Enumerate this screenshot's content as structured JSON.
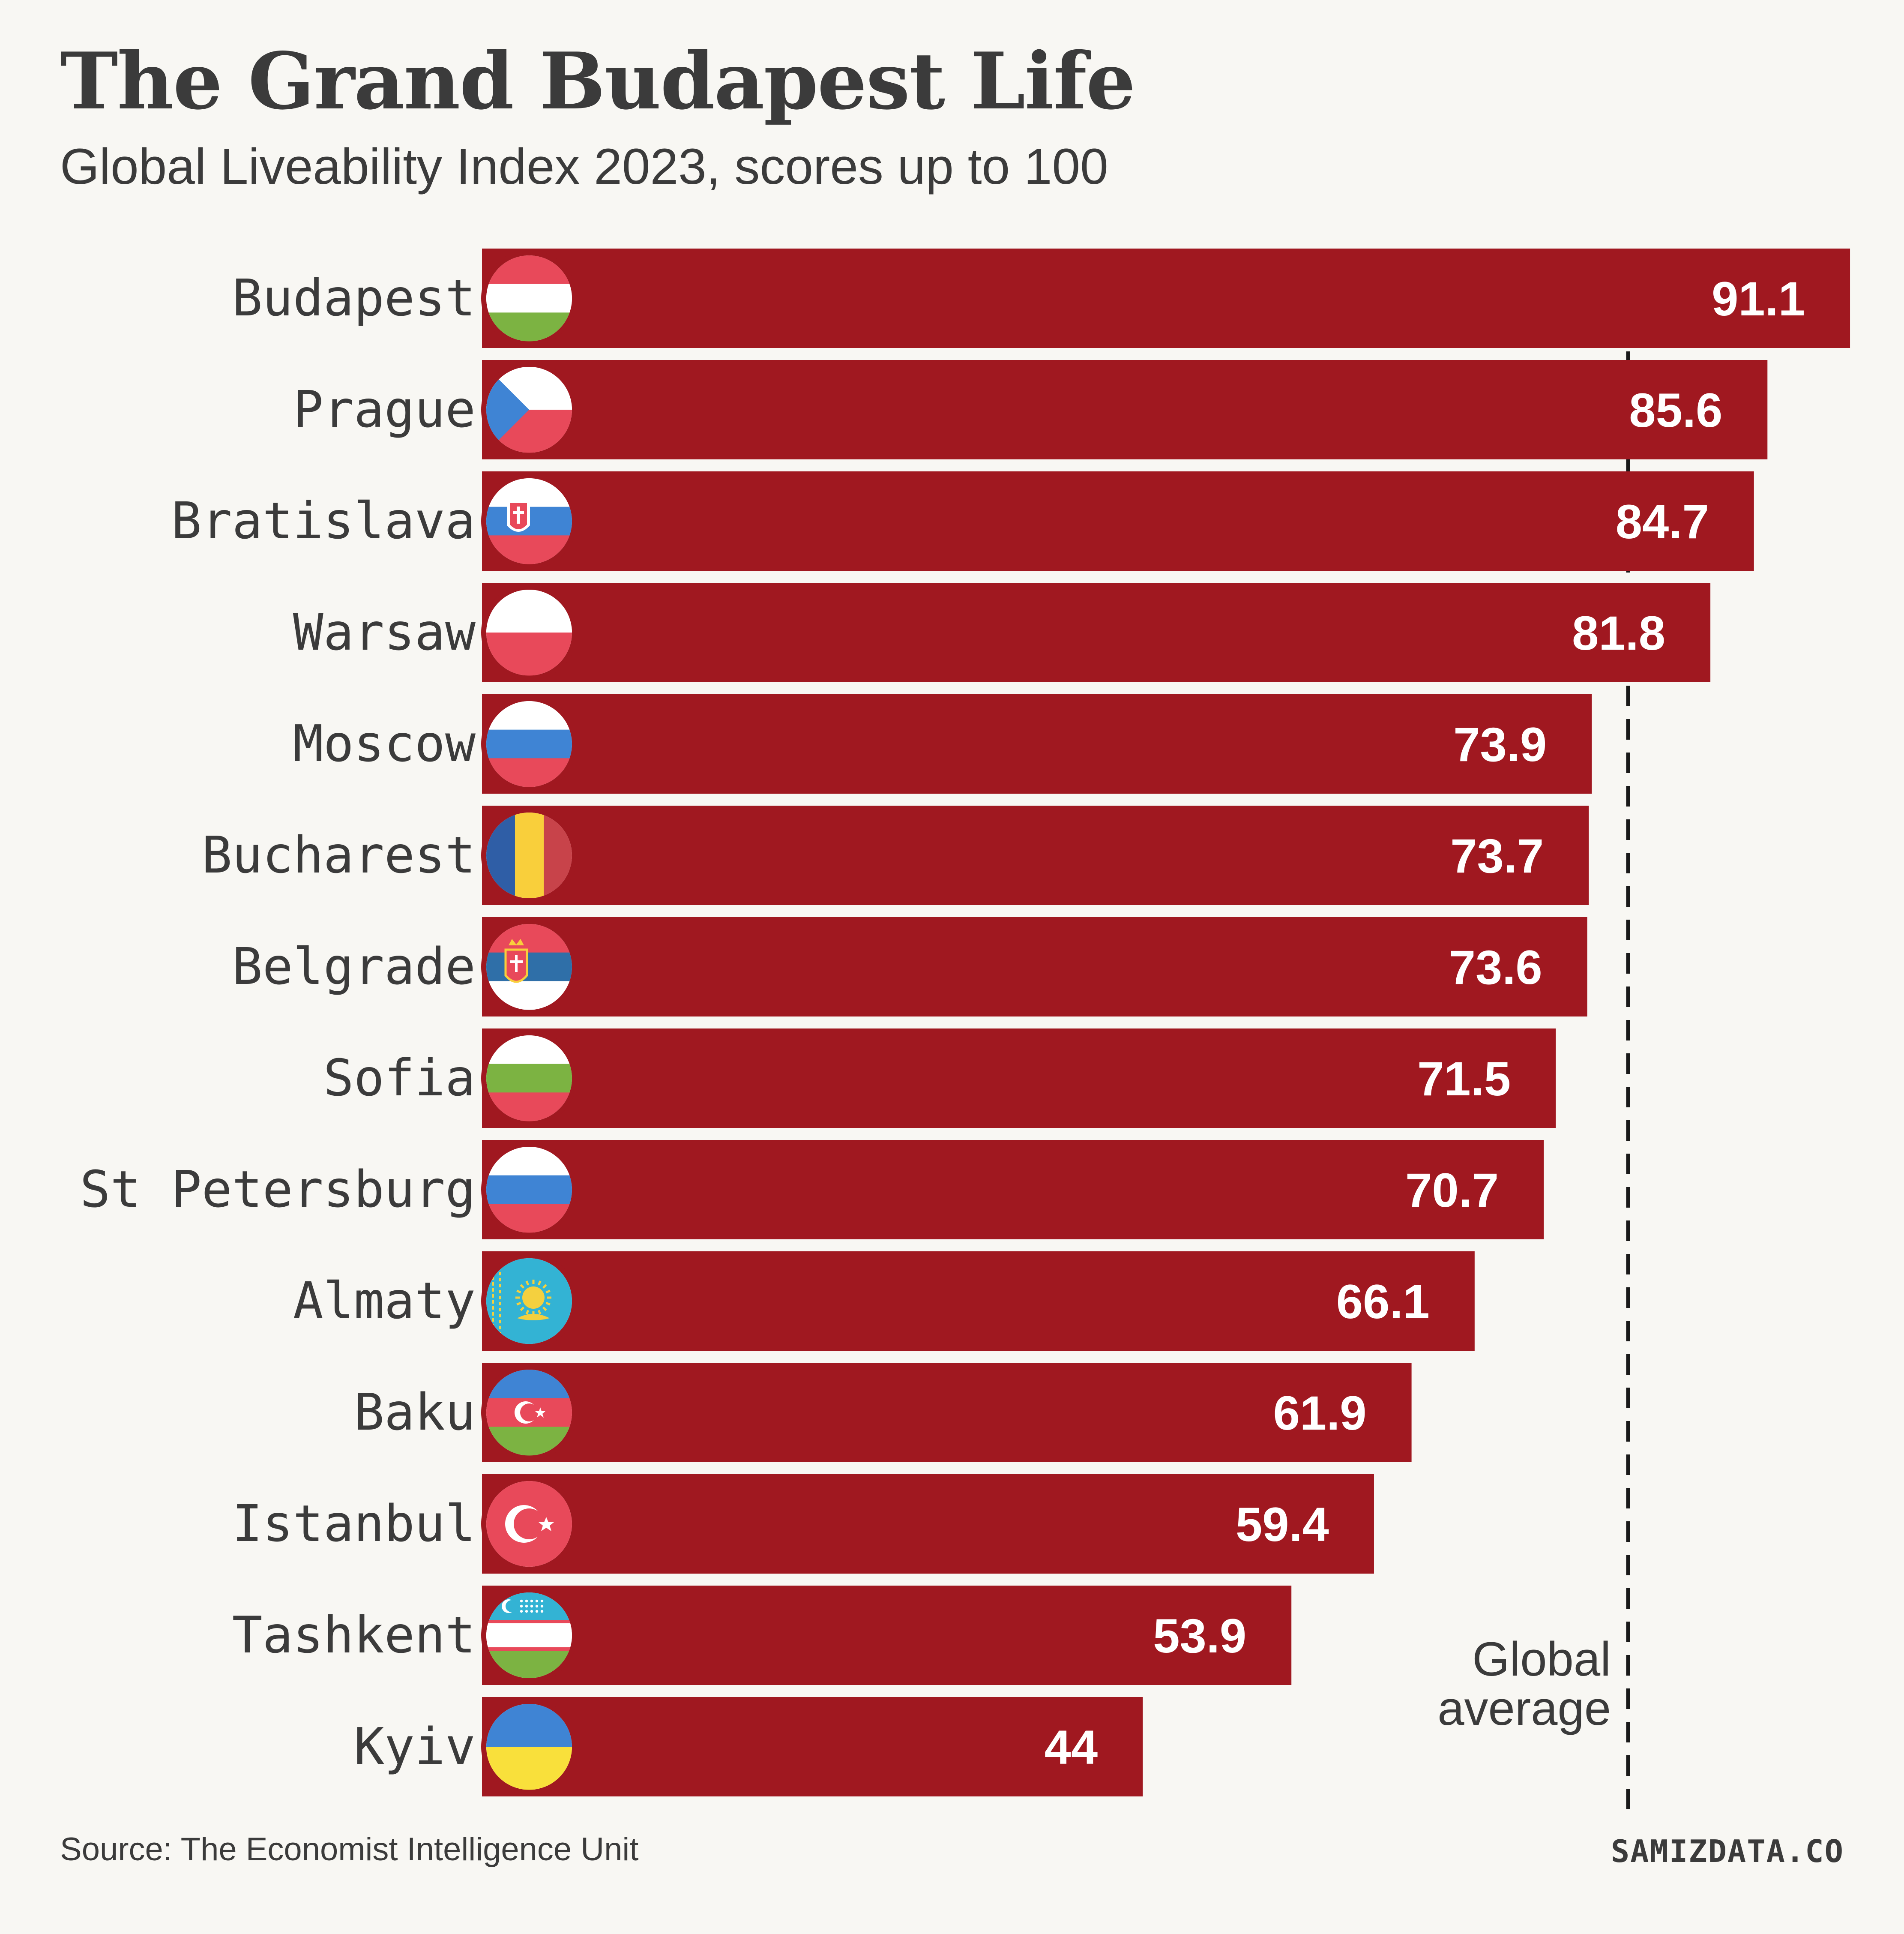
{
  "title": "The Grand Budapest Life",
  "subtitle": "Global Liveability Index 2023, scores up to 100",
  "source": "Source: The Economist Intelligence Unit",
  "brand": "SAMIZDATA.CO",
  "colors": {
    "bar": "#a01820",
    "background": "#f8f7f3",
    "text": "#3b3b3b",
    "bar_label": "#ffffff"
  },
  "chart_data": {
    "type": "bar",
    "orientation": "horizontal",
    "title": "The Grand Budapest Life",
    "subtitle": "Global Liveability Index 2023, scores up to 100",
    "categories": [
      "Budapest",
      "Prague",
      "Bratislava",
      "Warsaw",
      "Moscow",
      "Bucharest",
      "Belgrade",
      "Sofia",
      "St Petersburg",
      "Almaty",
      "Baku",
      "Istanbul",
      "Tashkent",
      "Kyiv"
    ],
    "values": [
      91.1,
      85.6,
      84.7,
      81.8,
      73.9,
      73.7,
      73.6,
      71.5,
      70.7,
      66.1,
      61.9,
      59.4,
      53.9,
      44
    ],
    "value_labels": [
      "91.1",
      "85.6",
      "84.7",
      "81.8",
      "73.9",
      "73.7",
      "73.6",
      "71.5",
      "70.7",
      "66.1",
      "61.9",
      "59.4",
      "53.9",
      "44"
    ],
    "flags": [
      "hungary",
      "czechia",
      "slovakia",
      "poland",
      "russia",
      "romania",
      "serbia",
      "bulgaria",
      "russia",
      "kazakhstan",
      "azerbaijan",
      "turkey",
      "uzbekistan",
      "ukraine"
    ],
    "reference_line": {
      "label_line1": "Global",
      "label_line2": "average",
      "value": 76.1,
      "style": "dashed"
    },
    "xlim": [
      0,
      100
    ],
    "grid": false,
    "legend": "none"
  }
}
